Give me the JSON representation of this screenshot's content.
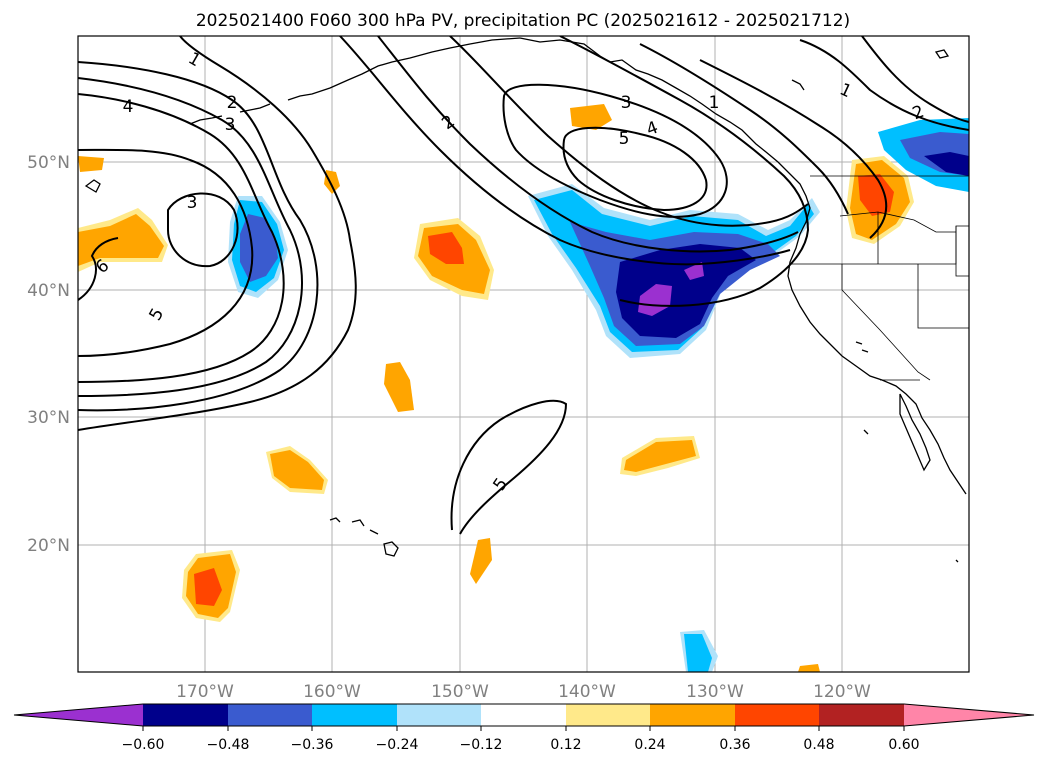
{
  "title": "2025021400 F060 300 hPa PV, precipitation PC (2025021612 - 2025021712)",
  "lat_labels": [
    "50°N",
    "40°N",
    "30°N",
    "20°N"
  ],
  "lon_labels": [
    "170°W",
    "160°W",
    "150°W",
    "140°W",
    "130°W",
    "120°W"
  ],
  "colorbar": {
    "ticks": [
      "−0.60",
      "−0.48",
      "−0.36",
      "−0.24",
      "−0.12",
      "0.12",
      "0.24",
      "0.36",
      "0.48",
      "0.60"
    ],
    "colors": [
      "#9b30d0",
      "#00008b",
      "#3a5bcf",
      "#00bfff",
      "#b0e2fa",
      "#ffffff",
      "#ffe98a",
      "#ffa500",
      "#ff4500",
      "#b22222",
      "#ff85a8"
    ]
  },
  "contour_labels": [
    "1",
    "2",
    "3",
    "4",
    "5",
    "6",
    "2",
    "3",
    "4",
    "5",
    "1",
    "2",
    "1",
    "3",
    "5"
  ],
  "colors": {
    "orange": "#ffa500",
    "red_orange": "#ff4500",
    "light_yellow": "#ffe98a",
    "light_blue": "#b0e2fa",
    "sky_blue": "#00bfff",
    "royal_blue": "#3a5bcf",
    "navy": "#00008b",
    "purple": "#9b30d0"
  }
}
